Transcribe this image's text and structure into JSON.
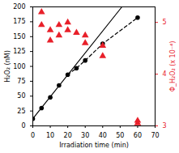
{
  "chart_data": {
    "type": "scatter",
    "x_label": "Irradiation time (min)",
    "y_label": "H₂O₂ (nM)",
    "y2_label": "Φ_H₂O₂ (x 10⁻⁴)",
    "xlim": [
      0,
      70
    ],
    "xticks": [
      0,
      10,
      20,
      30,
      40,
      50,
      60,
      70
    ],
    "ylim": [
      0,
      200
    ],
    "yticks": [
      0,
      25,
      50,
      75,
      100,
      125,
      150,
      175,
      200
    ],
    "y2lim": [
      3,
      5.3
    ],
    "y2ticks": [
      3,
      4,
      5
    ],
    "series": [
      {
        "type": "line",
        "line_style": "solid",
        "color": "#000000",
        "x": [
          0,
          51
        ],
        "values": [
          12,
          200
        ]
      },
      {
        "type": "line",
        "line_style": "dashed",
        "color": "#000000",
        "x": [
          20,
          25,
          30,
          40,
          60
        ],
        "values": [
          86,
          97,
          110,
          138,
          182
        ]
      },
      {
        "type": "scatter",
        "marker": "circle",
        "color": "#000000",
        "x": [
          0,
          5,
          10,
          15,
          20,
          25,
          30,
          40,
          60
        ],
        "values": [
          12,
          30,
          48,
          68,
          86,
          97,
          110,
          138,
          182
        ]
      },
      {
        "type": "scatter",
        "marker": "triangle",
        "color": "#e8202a",
        "axis": "y2",
        "x": [
          5,
          5,
          10,
          10,
          15,
          15,
          20,
          20,
          25,
          30,
          30,
          40,
          40,
          60,
          60
        ],
        "values": [
          5.2,
          4.95,
          4.85,
          4.65,
          4.95,
          4.75,
          5.0,
          4.85,
          4.8,
          4.75,
          4.6,
          4.55,
          4.35,
          3.1,
          3.05
        ]
      }
    ]
  }
}
